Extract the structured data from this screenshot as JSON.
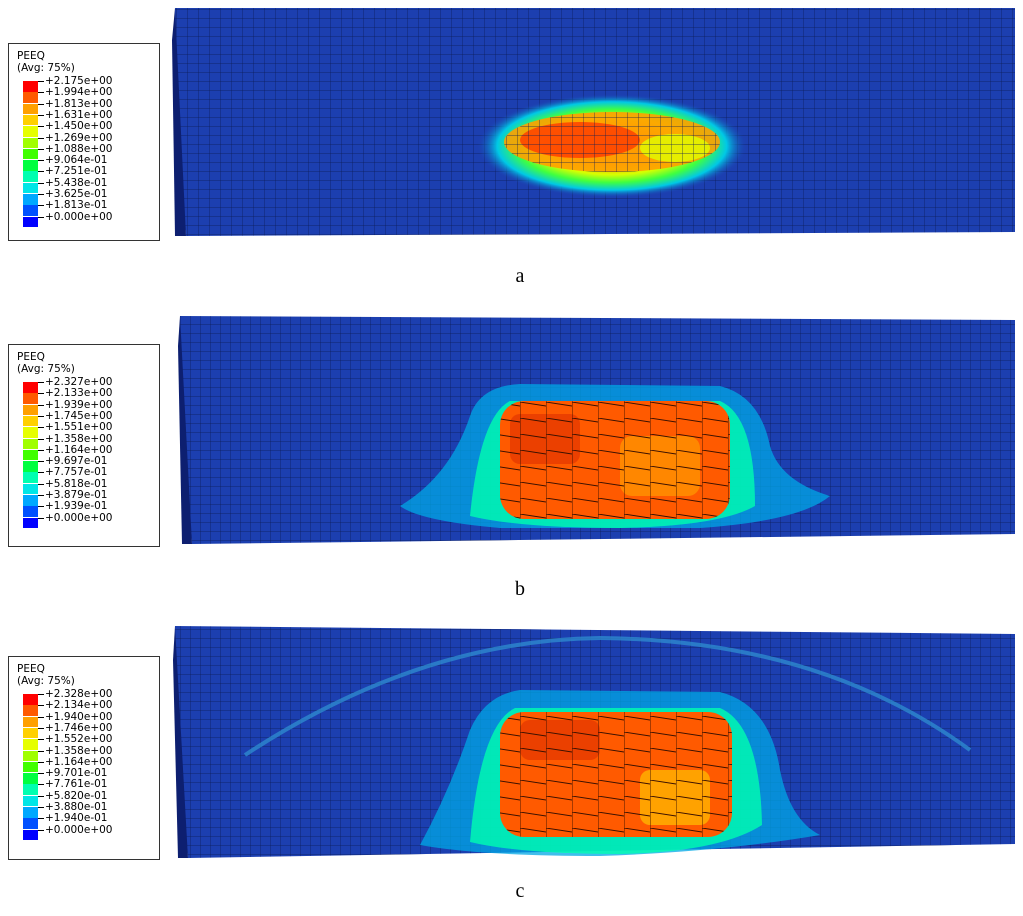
{
  "panels": [
    {
      "caption": "a",
      "legend": {
        "variable": "PEEQ",
        "averaging": "(Avg: 75%)",
        "values": [
          "+2.175e+00",
          "+1.994e+00",
          "+1.813e+00",
          "+1.631e+00",
          "+1.450e+00",
          "+1.269e+00",
          "+1.088e+00",
          "+9.064e-01",
          "+7.251e-01",
          "+5.438e-01",
          "+3.625e-01",
          "+1.813e-01",
          "+0.000e+00"
        ]
      }
    },
    {
      "caption": "b",
      "legend": {
        "variable": "PEEQ",
        "averaging": "(Avg: 75%)",
        "values": [
          "+2.327e+00",
          "+2.133e+00",
          "+1.939e+00",
          "+1.745e+00",
          "+1.551e+00",
          "+1.358e+00",
          "+1.164e+00",
          "+9.697e-01",
          "+7.757e-01",
          "+5.818e-01",
          "+3.879e-01",
          "+1.939e-01",
          "+0.000e+00"
        ]
      }
    },
    {
      "caption": "c",
      "legend": {
        "variable": "PEEQ",
        "averaging": "(Avg: 75%)",
        "values": [
          "+2.328e+00",
          "+2.134e+00",
          "+1.940e+00",
          "+1.746e+00",
          "+1.552e+00",
          "+1.358e+00",
          "+1.164e+00",
          "+9.701e-01",
          "+7.761e-01",
          "+5.820e-01",
          "+3.880e-01",
          "+1.940e-01",
          "+0.000e+00"
        ]
      }
    }
  ],
  "colormap": [
    "#ff0000",
    "#ff5a00",
    "#ffa000",
    "#ffd000",
    "#e6ff00",
    "#a0ff00",
    "#40ff00",
    "#00ff40",
    "#00ffb0",
    "#00e6e6",
    "#00a8ff",
    "#0050ff",
    "#0000ff"
  ],
  "mesh_base_color": "#1c3fb0",
  "mesh_line_color": "#0a1a55"
}
